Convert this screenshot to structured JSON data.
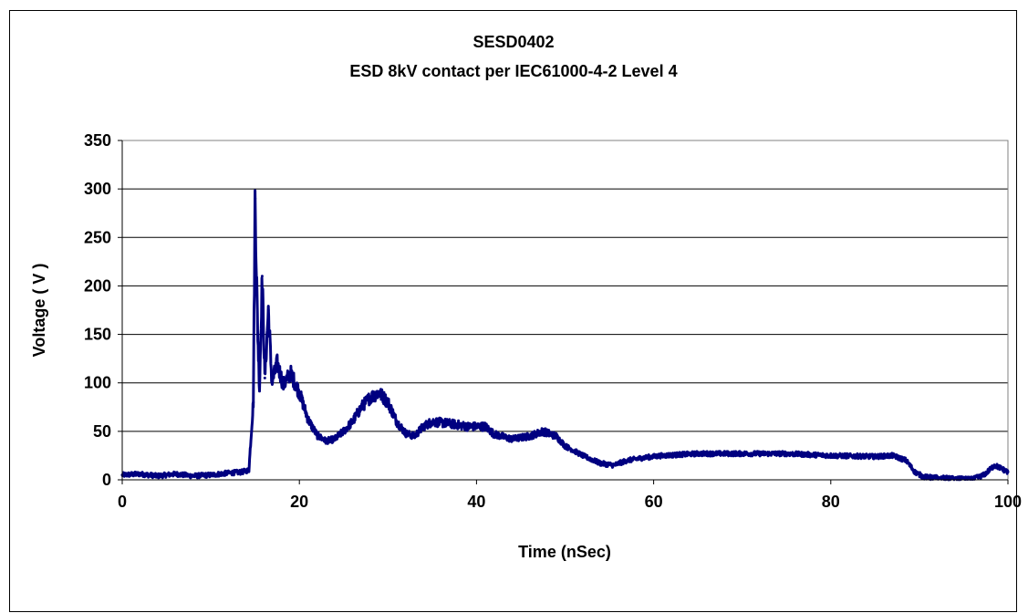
{
  "chart_data": {
    "type": "line",
    "title": "SESD0402",
    "subtitle": "ESD 8kV contact per IEC61000-4-2 Level 4",
    "xlabel": "Time (nSec)",
    "ylabel": "Voltage ( V )",
    "xlim": [
      0,
      100
    ],
    "ylim": [
      0,
      350
    ],
    "xticks": [
      0,
      20,
      40,
      60,
      80,
      100
    ],
    "yticks": [
      0,
      50,
      100,
      150,
      200,
      250,
      300,
      350
    ],
    "grid": "horizontal",
    "legend": "none",
    "line_color": "#000080",
    "series": [
      {
        "values": [
          [
            0,
            5
          ],
          [
            2,
            6
          ],
          [
            4,
            4
          ],
          [
            6,
            6
          ],
          [
            8,
            4
          ],
          [
            10,
            5
          ],
          [
            12,
            7
          ],
          [
            13.5,
            8
          ],
          [
            14.3,
            10
          ],
          [
            14.8,
            80
          ],
          [
            15.0,
            290
          ],
          [
            15.3,
            150
          ],
          [
            15.5,
            95
          ],
          [
            15.8,
            210
          ],
          [
            16.1,
            105
          ],
          [
            16.5,
            175
          ],
          [
            16.9,
            100
          ],
          [
            17.5,
            120
          ],
          [
            18.2,
            98
          ],
          [
            19.0,
            110
          ],
          [
            20.0,
            90
          ],
          [
            21.0,
            62
          ],
          [
            22.0,
            46
          ],
          [
            23.0,
            40
          ],
          [
            24.0,
            42
          ],
          [
            25.0,
            50
          ],
          [
            26.0,
            60
          ],
          [
            27.0,
            75
          ],
          [
            28.0,
            85
          ],
          [
            29.0,
            90
          ],
          [
            30.0,
            80
          ],
          [
            31.0,
            60
          ],
          [
            32.0,
            48
          ],
          [
            33.0,
            45
          ],
          [
            34.0,
            55
          ],
          [
            35.0,
            60
          ],
          [
            37.0,
            58
          ],
          [
            39.0,
            55
          ],
          [
            41.0,
            55
          ],
          [
            42.0,
            47
          ],
          [
            44.0,
            42
          ],
          [
            46.0,
            45
          ],
          [
            47.5,
            50
          ],
          [
            49.0,
            45
          ],
          [
            50.0,
            35
          ],
          [
            52.0,
            25
          ],
          [
            54.0,
            17
          ],
          [
            55.5,
            15
          ],
          [
            57.0,
            20
          ],
          [
            59.0,
            23
          ],
          [
            61.0,
            25
          ],
          [
            65.0,
            27
          ],
          [
            70.0,
            27
          ],
          [
            75.0,
            27
          ],
          [
            80.0,
            25
          ],
          [
            85.0,
            24
          ],
          [
            87.0,
            25
          ],
          [
            88.5,
            20
          ],
          [
            89.5,
            8
          ],
          [
            90.5,
            3
          ],
          [
            92.0,
            2
          ],
          [
            94.0,
            1
          ],
          [
            96.0,
            0.5
          ],
          [
            97.3,
            5
          ],
          [
            98.5,
            15
          ],
          [
            99.2,
            12
          ],
          [
            100.0,
            8
          ]
        ]
      }
    ]
  }
}
